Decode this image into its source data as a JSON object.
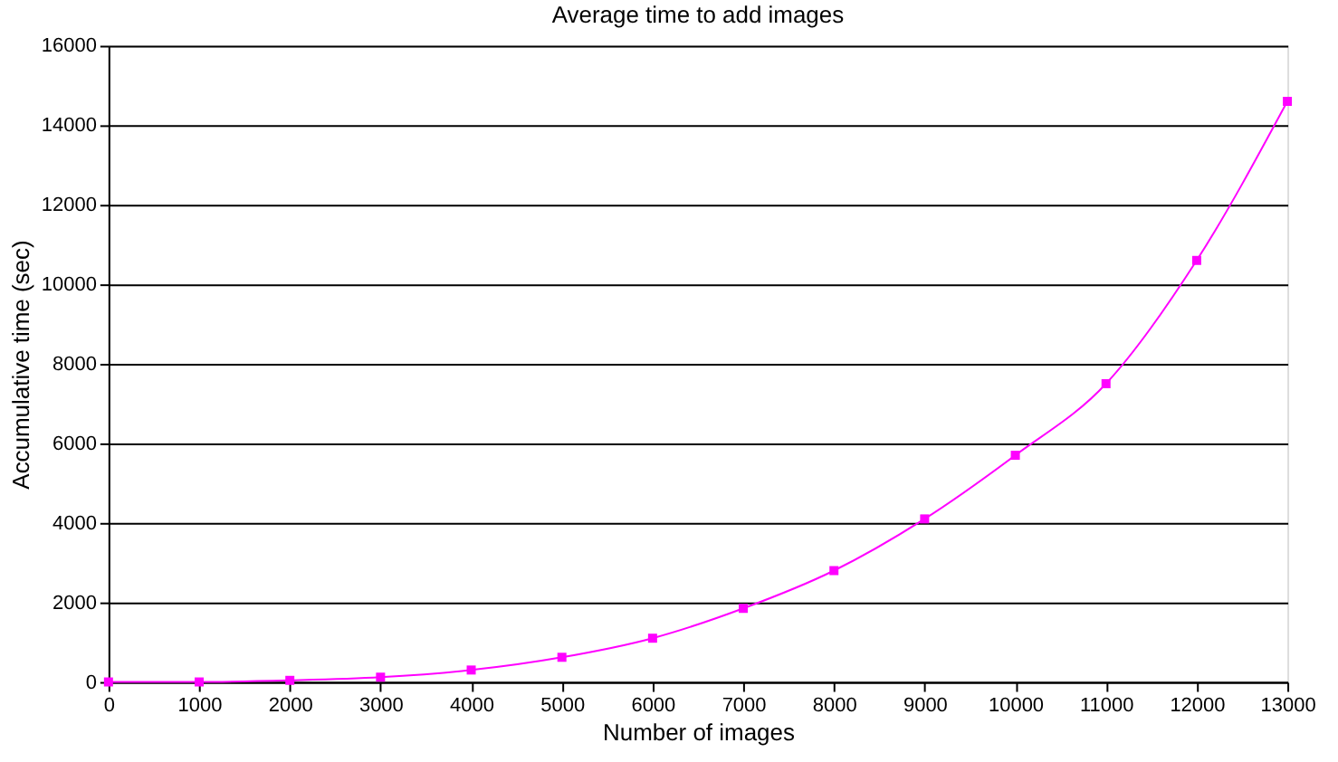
{
  "chart_data": {
    "type": "line",
    "title": "Average time to add images",
    "xlabel": "Number of images",
    "ylabel": "Accumulative time (sec)",
    "x": [
      0,
      1000,
      2000,
      3000,
      4000,
      5000,
      6000,
      7000,
      8000,
      9000,
      10000,
      11000,
      12000,
      13000
    ],
    "series": [
      {
        "color": "#ff00ff",
        "values": [
          0,
          0,
          40,
          120,
          300,
          620,
          1100,
          1850,
          2800,
          4100,
          5700,
          7500,
          10600,
          14600
        ]
      }
    ],
    "xlim": [
      0,
      13000
    ],
    "xticks": [
      0,
      1000,
      2000,
      3000,
      4000,
      5000,
      6000,
      7000,
      8000,
      9000,
      10000,
      11000,
      12000,
      13000
    ],
    "ylim": [
      0,
      16000
    ],
    "yticks": [
      0,
      2000,
      4000,
      6000,
      8000,
      10000,
      12000,
      14000,
      16000
    ],
    "grid": "y",
    "marker": "square",
    "line_style": "solid"
  }
}
